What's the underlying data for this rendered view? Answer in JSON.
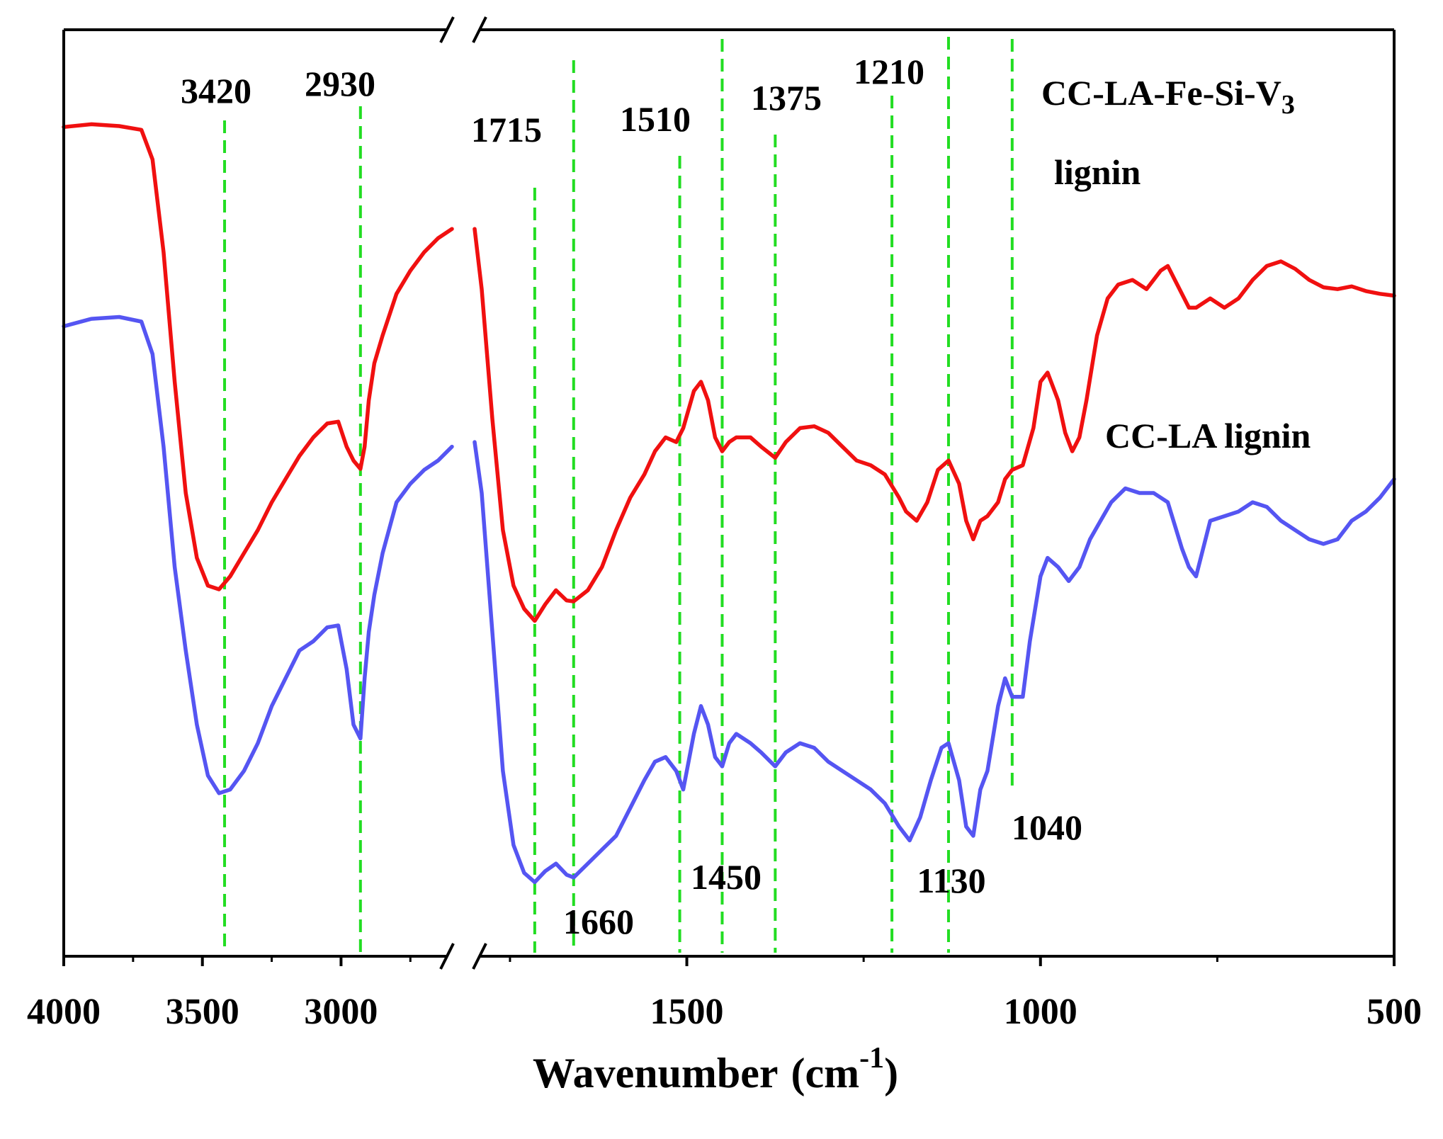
{
  "chart_data": {
    "type": "line",
    "title": "",
    "xlabel": "Wavenumber",
    "xlabel_unit": "(cm",
    "xlabel_exp": "-1",
    "xlabel_close": ")",
    "ylabel": "",
    "x_reversed": true,
    "x_break": [
      2600,
      1800
    ],
    "x_segments": [
      [
        4000,
        2600
      ],
      [
        1800,
        500
      ]
    ],
    "xticks": [
      {
        "value": 4000,
        "label": "4000"
      },
      {
        "value": 3500,
        "label": "3500"
      },
      {
        "value": 3000,
        "label": "3000"
      },
      {
        "value": 1500,
        "label": "1500"
      },
      {
        "value": 1000,
        "label": "1000"
      },
      {
        "value": 500,
        "label": "500"
      }
    ],
    "minor_ticks": [
      3750,
      3250,
      2750,
      1750,
      1250,
      750
    ],
    "ylim": [
      0,
      100
    ],
    "series": [
      {
        "name": "CC-LA-Fe-Si-V",
        "name_sub": "3",
        "name_line2": "lignin",
        "color": "#f01010",
        "points": [
          [
            4000,
            89.5
          ],
          [
            3900,
            89.8
          ],
          [
            3800,
            89.6
          ],
          [
            3720,
            89.2
          ],
          [
            3680,
            86
          ],
          [
            3640,
            76
          ],
          [
            3600,
            62
          ],
          [
            3560,
            50
          ],
          [
            3520,
            43
          ],
          [
            3480,
            40
          ],
          [
            3440,
            39.6
          ],
          [
            3400,
            41
          ],
          [
            3350,
            43.5
          ],
          [
            3300,
            46
          ],
          [
            3250,
            49
          ],
          [
            3200,
            51.5
          ],
          [
            3150,
            54
          ],
          [
            3100,
            56
          ],
          [
            3050,
            57.5
          ],
          [
            3010,
            57.7
          ],
          [
            2980,
            55
          ],
          [
            2955,
            53.5
          ],
          [
            2930,
            52.6
          ],
          [
            2915,
            55
          ],
          [
            2900,
            60
          ],
          [
            2880,
            64
          ],
          [
            2850,
            67
          ],
          [
            2800,
            71.5
          ],
          [
            2750,
            74
          ],
          [
            2700,
            76
          ],
          [
            2650,
            77.5
          ],
          [
            2600,
            78.5
          ],
          [
            1800,
            78.5
          ],
          [
            1790,
            72
          ],
          [
            1775,
            58
          ],
          [
            1760,
            46
          ],
          [
            1745,
            40
          ],
          [
            1730,
            37.5
          ],
          [
            1715,
            36.2
          ],
          [
            1700,
            38
          ],
          [
            1685,
            39.5
          ],
          [
            1670,
            38.4
          ],
          [
            1660,
            38.3
          ],
          [
            1640,
            39.5
          ],
          [
            1620,
            42
          ],
          [
            1600,
            46
          ],
          [
            1580,
            49.5
          ],
          [
            1560,
            52
          ],
          [
            1545,
            54.5
          ],
          [
            1530,
            56
          ],
          [
            1515,
            55.5
          ],
          [
            1505,
            57
          ],
          [
            1490,
            61
          ],
          [
            1480,
            62
          ],
          [
            1470,
            60
          ],
          [
            1460,
            56
          ],
          [
            1450,
            54.5
          ],
          [
            1440,
            55.5
          ],
          [
            1430,
            56
          ],
          [
            1410,
            56
          ],
          [
            1395,
            55
          ],
          [
            1375,
            53.8
          ],
          [
            1360,
            55.5
          ],
          [
            1340,
            57
          ],
          [
            1320,
            57.2
          ],
          [
            1300,
            56.5
          ],
          [
            1280,
            55
          ],
          [
            1260,
            53.5
          ],
          [
            1240,
            53
          ],
          [
            1220,
            52
          ],
          [
            1200,
            49.5
          ],
          [
            1190,
            48
          ],
          [
            1175,
            47
          ],
          [
            1160,
            49
          ],
          [
            1145,
            52.5
          ],
          [
            1130,
            53.5
          ],
          [
            1115,
            51
          ],
          [
            1105,
            47
          ],
          [
            1095,
            45
          ],
          [
            1085,
            47
          ],
          [
            1075,
            47.5
          ],
          [
            1060,
            49
          ],
          [
            1050,
            51.5
          ],
          [
            1040,
            52.5
          ],
          [
            1025,
            53
          ],
          [
            1010,
            57
          ],
          [
            1000,
            62
          ],
          [
            990,
            63
          ],
          [
            975,
            60
          ],
          [
            965,
            56.5
          ],
          [
            955,
            54.5
          ],
          [
            945,
            56
          ],
          [
            935,
            60
          ],
          [
            920,
            67
          ],
          [
            905,
            71
          ],
          [
            890,
            72.5
          ],
          [
            870,
            73
          ],
          [
            850,
            72
          ],
          [
            830,
            74
          ],
          [
            820,
            74.5
          ],
          [
            810,
            73
          ],
          [
            790,
            70
          ],
          [
            780,
            70
          ],
          [
            760,
            71
          ],
          [
            740,
            70
          ],
          [
            720,
            71
          ],
          [
            700,
            73
          ],
          [
            680,
            74.5
          ],
          [
            660,
            75
          ],
          [
            640,
            74.2
          ],
          [
            620,
            73
          ],
          [
            600,
            72.2
          ],
          [
            580,
            72
          ],
          [
            560,
            72.3
          ],
          [
            540,
            71.8
          ],
          [
            520,
            71.5
          ],
          [
            500,
            71.3
          ]
        ]
      },
      {
        "name": "CC-LA lignin",
        "color": "#5555f2",
        "points": [
          [
            4000,
            68
          ],
          [
            3900,
            68.8
          ],
          [
            3800,
            69
          ],
          [
            3720,
            68.5
          ],
          [
            3680,
            65
          ],
          [
            3640,
            55
          ],
          [
            3600,
            42
          ],
          [
            3560,
            33
          ],
          [
            3520,
            25
          ],
          [
            3480,
            19.5
          ],
          [
            3440,
            17.6
          ],
          [
            3400,
            18
          ],
          [
            3350,
            20
          ],
          [
            3300,
            23
          ],
          [
            3250,
            27
          ],
          [
            3200,
            30
          ],
          [
            3150,
            33
          ],
          [
            3100,
            34
          ],
          [
            3050,
            35.5
          ],
          [
            3010,
            35.7
          ],
          [
            2980,
            31
          ],
          [
            2955,
            25
          ],
          [
            2930,
            23.5
          ],
          [
            2915,
            30
          ],
          [
            2900,
            35
          ],
          [
            2880,
            39
          ],
          [
            2850,
            43.5
          ],
          [
            2800,
            49
          ],
          [
            2750,
            51
          ],
          [
            2700,
            52.5
          ],
          [
            2650,
            53.5
          ],
          [
            2600,
            55
          ],
          [
            1800,
            55.5
          ],
          [
            1790,
            50
          ],
          [
            1775,
            35
          ],
          [
            1760,
            20
          ],
          [
            1745,
            12
          ],
          [
            1730,
            9
          ],
          [
            1715,
            8
          ],
          [
            1700,
            9.2
          ],
          [
            1685,
            10
          ],
          [
            1670,
            8.8
          ],
          [
            1660,
            8.5
          ],
          [
            1640,
            10
          ],
          [
            1620,
            11.5
          ],
          [
            1600,
            13
          ],
          [
            1580,
            16
          ],
          [
            1560,
            19
          ],
          [
            1545,
            21
          ],
          [
            1530,
            21.5
          ],
          [
            1515,
            20
          ],
          [
            1505,
            18
          ],
          [
            1490,
            24
          ],
          [
            1480,
            27
          ],
          [
            1470,
            25
          ],
          [
            1460,
            21.5
          ],
          [
            1450,
            20.5
          ],
          [
            1440,
            23
          ],
          [
            1430,
            24
          ],
          [
            1410,
            23
          ],
          [
            1395,
            22
          ],
          [
            1375,
            20.5
          ],
          [
            1360,
            22
          ],
          [
            1340,
            23
          ],
          [
            1320,
            22.5
          ],
          [
            1300,
            21
          ],
          [
            1280,
            20
          ],
          [
            1260,
            19
          ],
          [
            1240,
            18
          ],
          [
            1220,
            16.5
          ],
          [
            1200,
            14
          ],
          [
            1185,
            12.5
          ],
          [
            1170,
            15
          ],
          [
            1155,
            19
          ],
          [
            1140,
            22.5
          ],
          [
            1130,
            23
          ],
          [
            1115,
            19
          ],
          [
            1105,
            14
          ],
          [
            1095,
            13
          ],
          [
            1085,
            18
          ],
          [
            1075,
            20
          ],
          [
            1060,
            27
          ],
          [
            1050,
            30
          ],
          [
            1040,
            28
          ],
          [
            1025,
            28
          ],
          [
            1015,
            34
          ],
          [
            1000,
            41
          ],
          [
            990,
            43
          ],
          [
            975,
            42
          ],
          [
            960,
            40.5
          ],
          [
            945,
            42
          ],
          [
            930,
            45
          ],
          [
            915,
            47
          ],
          [
            900,
            49
          ],
          [
            880,
            50.5
          ],
          [
            860,
            50
          ],
          [
            840,
            50
          ],
          [
            820,
            49
          ],
          [
            800,
            44
          ],
          [
            790,
            42
          ],
          [
            780,
            41
          ],
          [
            770,
            44
          ],
          [
            760,
            47
          ],
          [
            740,
            47.5
          ],
          [
            720,
            48
          ],
          [
            700,
            49
          ],
          [
            680,
            48.5
          ],
          [
            660,
            47
          ],
          [
            640,
            46
          ],
          [
            620,
            45
          ],
          [
            600,
            44.5
          ],
          [
            580,
            45
          ],
          [
            560,
            47
          ],
          [
            540,
            48
          ],
          [
            520,
            49.5
          ],
          [
            500,
            51.5
          ]
        ]
      }
    ],
    "reference_lines": [
      3420,
      2930,
      1715,
      1660,
      1510,
      1450,
      1375,
      1210,
      1130,
      1040
    ],
    "peak_labels": [
      {
        "text": "3420",
        "x": 3420,
        "pos": "top"
      },
      {
        "text": "2930",
        "x": 2930,
        "pos": "top"
      },
      {
        "text": "1715",
        "x": 1715,
        "pos": "top"
      },
      {
        "text": "1510",
        "x": 1510,
        "pos": "top"
      },
      {
        "text": "1375",
        "x": 1375,
        "pos": "top"
      },
      {
        "text": "1210",
        "x": 1210,
        "pos": "top"
      },
      {
        "text": "1660",
        "x": 1660,
        "pos": "bottom"
      },
      {
        "text": "1450",
        "x": 1450,
        "pos": "bottom"
      },
      {
        "text": "1130",
        "x": 1130,
        "pos": "bottom"
      },
      {
        "text": "1040",
        "x": 1040,
        "pos": "bottom"
      }
    ],
    "colors": {
      "axis": "#000000",
      "reference": "#22dd22"
    }
  }
}
